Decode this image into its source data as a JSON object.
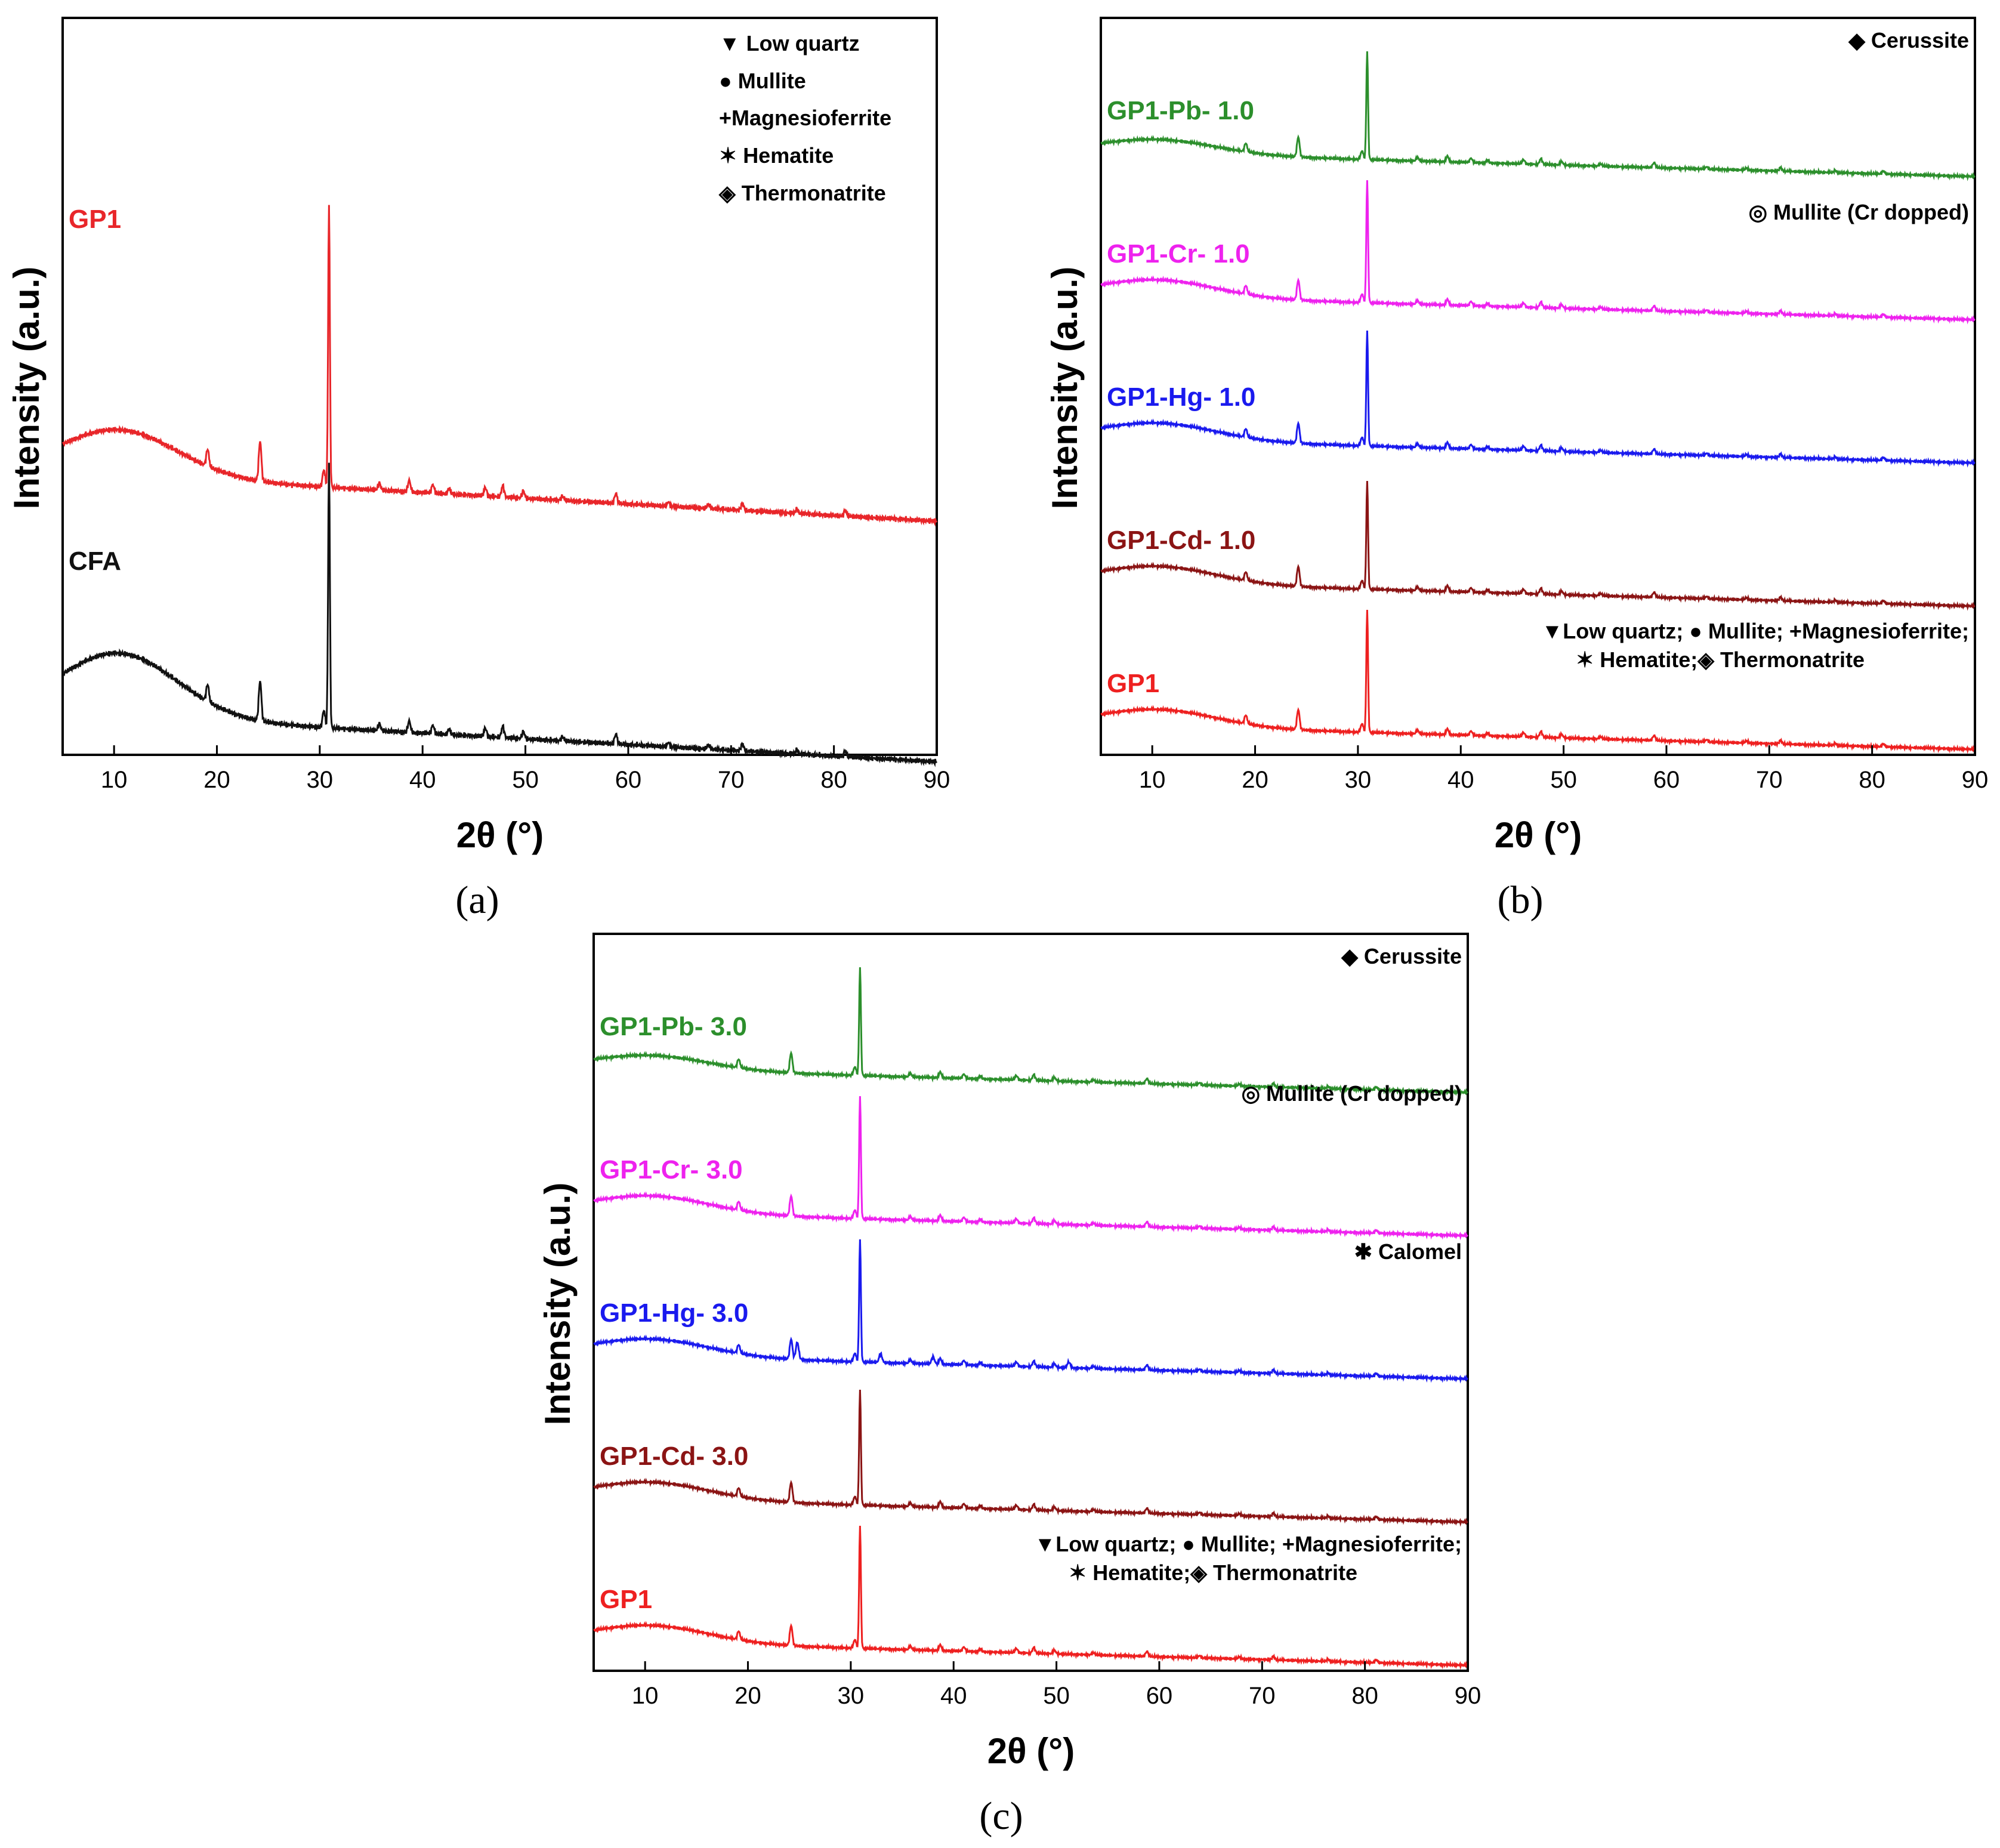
{
  "chart_data": [
    {
      "type": "line",
      "panel": "(a)",
      "xlabel": "2θ (°)",
      "ylabel": "Intensity (a.u.)",
      "xlim": [
        5,
        90
      ],
      "xticks": [
        10,
        20,
        30,
        40,
        50,
        60,
        70,
        80,
        90
      ],
      "legend": {
        "position": "top-right",
        "entries": [
          {
            "symbol": "▼",
            "label": "Low quartz"
          },
          {
            "symbol": "●",
            "label": "Mullite"
          },
          {
            "symbol": "+",
            "label": "Magnesioferrite"
          },
          {
            "symbol": "✶",
            "label": "Hematite"
          },
          {
            "symbol": "◈",
            "label": "Thermonatrite"
          }
        ]
      },
      "series": [
        {
          "name": "GP1",
          "color": "#e8262a",
          "offset": 0.72,
          "peak_height": 0.98,
          "hump": 0.16
        },
        {
          "name": "CFA",
          "color": "#111111",
          "offset": 0.0,
          "peak_height": 0.92,
          "hump": 0.22
        }
      ]
    },
    {
      "type": "line",
      "panel": "(b)",
      "xlabel": "2θ (°)",
      "ylabel": "Intensity (a.u.)",
      "xlim": [
        5,
        90
      ],
      "xticks": [
        10,
        20,
        30,
        40,
        50,
        60,
        70,
        80,
        90
      ],
      "legend_notes": [
        {
          "symbol": "◆",
          "label": "Cerussite"
        },
        {
          "symbol": "◎",
          "label": "Mullite (Cr dopped)"
        }
      ],
      "legend_bottom": [
        "▼Low quartz; ● Mullite; +Magnesioferrite;",
        "✶ Hematite;◈ Thermonatrite"
      ],
      "series": [
        {
          "name": "GP1-Pb- 1.0",
          "color": "#2c8f2c",
          "offset": 4.0,
          "peak_height": 0.75,
          "hump": 0.1
        },
        {
          "name": "GP1-Cr- 1.0",
          "color": "#ee22ee",
          "offset": 3.0,
          "peak_height": 0.85,
          "hump": 0.12
        },
        {
          "name": "GP1-Hg- 1.0",
          "color": "#1a1aee",
          "offset": 2.0,
          "peak_height": 0.8,
          "hump": 0.12
        },
        {
          "name": "GP1-Cd- 1.0",
          "color": "#8b1414",
          "offset": 1.0,
          "peak_height": 0.75,
          "hump": 0.12
        },
        {
          "name": "GP1",
          "color": "#ee2020",
          "offset": 0.0,
          "peak_height": 0.85,
          "hump": 0.12
        }
      ]
    },
    {
      "type": "line",
      "panel": "(c)",
      "xlabel": "2θ (°)",
      "ylabel": "Intensity (a.u.)",
      "xlim": [
        5,
        90
      ],
      "xticks": [
        10,
        20,
        30,
        40,
        50,
        60,
        70,
        80,
        90
      ],
      "legend_notes": [
        {
          "symbol": "◆",
          "label": "Cerussite"
        },
        {
          "symbol": "◎",
          "label": "Mullite (Cr dopped)"
        },
        {
          "symbol": "✱",
          "label": "Calomel"
        }
      ],
      "legend_bottom": [
        "▼Low quartz; ● Mullite; +Magnesioferrite;",
        "✶ Hematite;◈ Thermonatrite"
      ],
      "series": [
        {
          "name": "GP1-Pb- 3.0",
          "color": "#2c8f2c",
          "offset": 4.0,
          "peak_height": 0.75,
          "hump": 0.1
        },
        {
          "name": "GP1-Cr- 3.0",
          "color": "#ee22ee",
          "offset": 3.0,
          "peak_height": 0.85,
          "hump": 0.12
        },
        {
          "name": "GP1-Hg- 3.0",
          "color": "#1a1aee",
          "offset": 2.0,
          "peak_height": 0.85,
          "hump": 0.12
        },
        {
          "name": "GP1-Cd- 3.0",
          "color": "#8b1414",
          "offset": 1.0,
          "peak_height": 0.8,
          "hump": 0.12
        },
        {
          "name": "GP1",
          "color": "#ee2020",
          "offset": 0.0,
          "peak_height": 0.85,
          "hump": 0.12
        }
      ]
    }
  ]
}
